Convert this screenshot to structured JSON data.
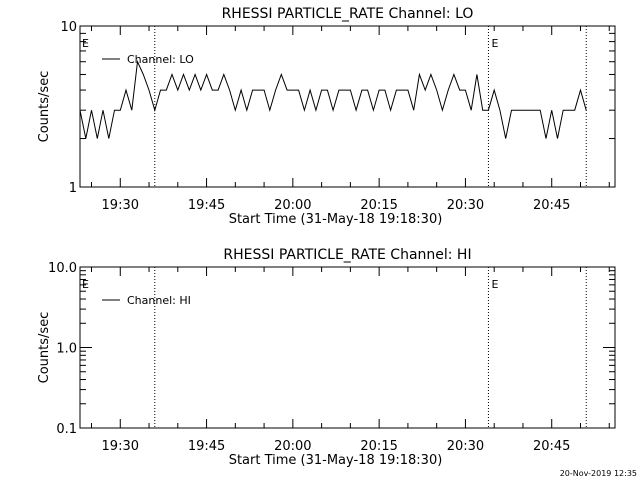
{
  "footer": {
    "timestamp": "20-Nov-2019 12:35"
  },
  "chart_data": [
    {
      "type": "line",
      "title": "RHESSI PARTICLE_RATE Channel: LO",
      "xlabel": "Start Time (31-May-18 19:18:30)",
      "ylabel": "Counts/sec",
      "yscale": "log",
      "xlim": [
        "19:23",
        "20:56"
      ],
      "ylim": [
        1,
        10
      ],
      "x_ticks": [
        "19:30",
        "19:45",
        "20:00",
        "20:15",
        "20:30",
        "20:45"
      ],
      "y_ticks": [
        "1",
        "10"
      ],
      "legend": {
        "position": "top-left",
        "entries": [
          "Channel: LO"
        ]
      },
      "markers": [
        {
          "time": "19:36",
          "label": ""
        },
        {
          "time": "20:34",
          "label": "E"
        },
        {
          "time": "20:51",
          "label": ""
        }
      ],
      "left_marker_label": "E",
      "series": [
        {
          "name": "Channel: LO",
          "x": [
            "19:23",
            "19:24",
            "19:25",
            "19:26",
            "19:27",
            "19:28",
            "19:29",
            "19:30",
            "19:31",
            "19:32",
            "19:33",
            "19:34",
            "19:35",
            "19:36",
            "19:37",
            "19:38",
            "19:39",
            "19:40",
            "19:41",
            "19:42",
            "19:43",
            "19:44",
            "19:45",
            "19:46",
            "19:47",
            "19:48",
            "19:49",
            "19:50",
            "19:51",
            "19:52",
            "19:53",
            "19:54",
            "19:55",
            "19:56",
            "19:57",
            "19:58",
            "19:59",
            "20:00",
            "20:01",
            "20:02",
            "20:03",
            "20:04",
            "20:05",
            "20:06",
            "20:07",
            "20:08",
            "20:09",
            "20:10",
            "20:11",
            "20:12",
            "20:13",
            "20:14",
            "20:15",
            "20:16",
            "20:17",
            "20:18",
            "20:19",
            "20:20",
            "20:21",
            "20:22",
            "20:23",
            "20:24",
            "20:25",
            "20:26",
            "20:27",
            "20:28",
            "20:29",
            "20:30",
            "20:31",
            "20:32",
            "20:33",
            "20:34",
            "20:35",
            "20:36",
            "20:37",
            "20:38",
            "20:39",
            "20:40",
            "20:41",
            "20:42",
            "20:43",
            "20:44",
            "20:45",
            "20:46",
            "20:47",
            "20:48",
            "20:49",
            "20:50",
            "20:51"
          ],
          "values": [
            3,
            2,
            3,
            2,
            3,
            2,
            3,
            3,
            4,
            3,
            6,
            5,
            4,
            3,
            4,
            4,
            5,
            4,
            5,
            4,
            5,
            4,
            5,
            4,
            4,
            5,
            4,
            3,
            4,
            3,
            4,
            4,
            4,
            3,
            4,
            5,
            4,
            4,
            4,
            3,
            4,
            3,
            4,
            4,
            3,
            4,
            4,
            4,
            3,
            4,
            4,
            3,
            4,
            4,
            3,
            4,
            4,
            4,
            3,
            5,
            4,
            5,
            4,
            3,
            4,
            5,
            4,
            4,
            3,
            5,
            3,
            3,
            4,
            3,
            2,
            3,
            3,
            3,
            3,
            3,
            3,
            2,
            3,
            2,
            3,
            3,
            3,
            4,
            3
          ]
        }
      ]
    },
    {
      "type": "line",
      "title": "RHESSI PARTICLE_RATE Channel: HI",
      "xlabel": "Start Time (31-May-18 19:18:30)",
      "ylabel": "Counts/sec",
      "yscale": "log",
      "xlim": [
        "19:23",
        "20:56"
      ],
      "ylim": [
        0.1,
        10
      ],
      "x_ticks": [
        "19:30",
        "19:45",
        "20:00",
        "20:15",
        "20:30",
        "20:45"
      ],
      "y_ticks": [
        "0.1",
        "1.0",
        "10.0"
      ],
      "legend": {
        "position": "top-left",
        "entries": [
          "Channel: HI"
        ]
      },
      "markers": [
        {
          "time": "19:36",
          "label": ""
        },
        {
          "time": "20:34",
          "label": "E"
        },
        {
          "time": "20:51",
          "label": ""
        }
      ],
      "left_marker_label": "E",
      "series": [
        {
          "name": "Channel: HI",
          "x": [],
          "values": []
        }
      ]
    }
  ]
}
